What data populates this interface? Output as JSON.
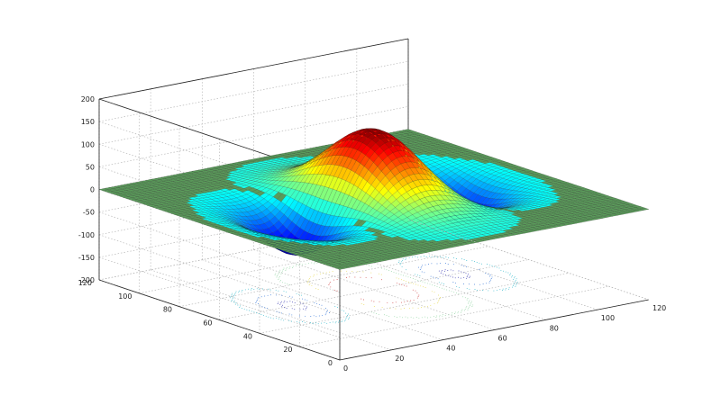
{
  "chart_data": {
    "type": "surface",
    "title": "",
    "xlabel": "",
    "ylabel": "",
    "zlabel": "",
    "xlim": [
      0,
      120
    ],
    "ylim": [
      0,
      120
    ],
    "zlim": [
      -200,
      200
    ],
    "x_ticks": [
      "0",
      "20",
      "40",
      "60",
      "80",
      "100",
      "120"
    ],
    "y_ticks": [
      "0",
      "20",
      "40",
      "60",
      "80",
      "100",
      "120"
    ],
    "z_ticks": [
      "-200",
      "-150",
      "-100",
      "-50",
      "0",
      "50",
      "100",
      "150",
      "200"
    ],
    "grid": true,
    "colormap": "jet",
    "plane_color": "#5a9a5a",
    "peaks": [
      {
        "x": 60,
        "y": 60,
        "z": 155
      },
      {
        "x": 90,
        "y": 60,
        "z": -95
      },
      {
        "x": 30,
        "y": 60,
        "z": -95
      }
    ],
    "contour_projection": true,
    "contour_levels": [
      -80,
      -50,
      -20,
      20,
      60,
      100
    ]
  }
}
